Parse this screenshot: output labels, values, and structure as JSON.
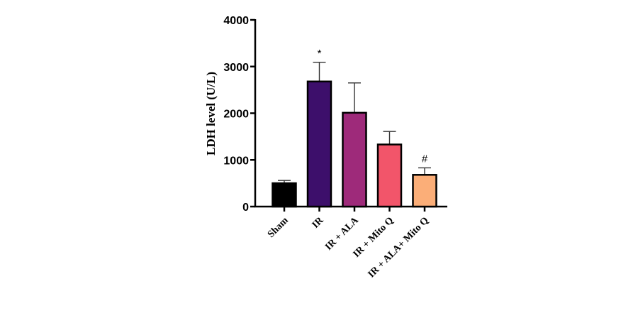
{
  "chart_data": {
    "type": "bar",
    "title": "",
    "xlabel": "",
    "ylabel": "LDH  level (U/L)",
    "ylim": [
      0,
      4000
    ],
    "yticks": [
      "0",
      "1000",
      "2000",
      "3000",
      "4000"
    ],
    "grid": false,
    "legend": "none",
    "categories": [
      "Sham",
      "IR",
      "IR + ALA",
      "IR + Mito Q",
      "IR + ALA+ Mito Q"
    ],
    "series": [
      {
        "values": [
          500,
          2680,
          2010,
          1330,
          680
        ],
        "errors": [
          60,
          410,
          640,
          280,
          150
        ]
      }
    ],
    "bar_colors": [
      "#000000",
      "#3d0f6b",
      "#9e2a7a",
      "#f2556a",
      "#fbae78"
    ],
    "annotations": [
      "",
      "*",
      "",
      "",
      "#"
    ]
  }
}
